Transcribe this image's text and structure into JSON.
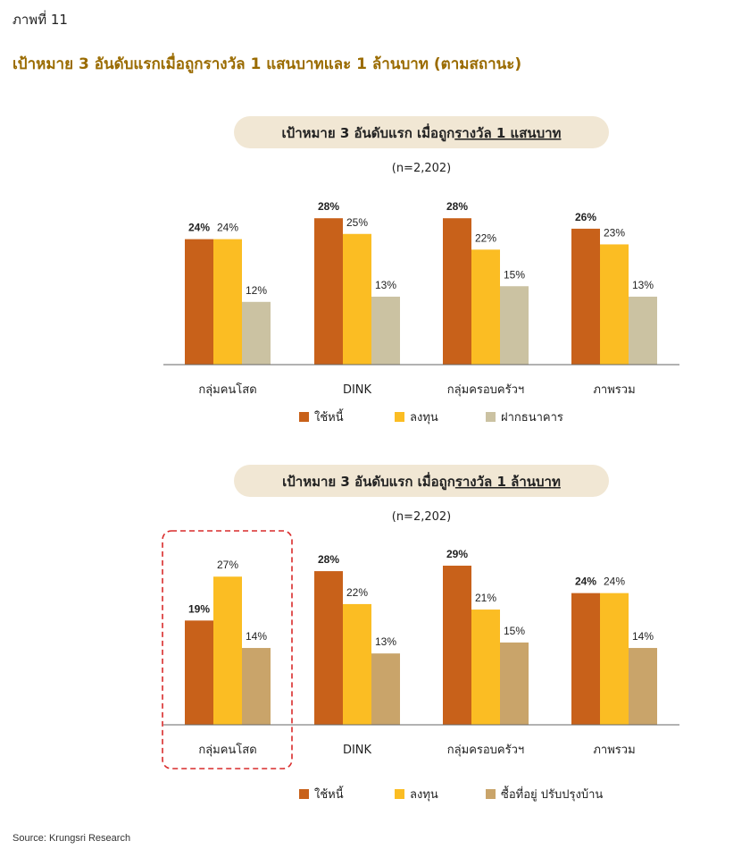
{
  "figure_label": "ภาพที่ 11",
  "figure_title": "เป้าหมาย 3 อันดับแรกเมื่อถูกรางวัล 1 แสนบาทและ 1 ล้านบาท (ตามสถานะ)",
  "source": "Source: Krungsri Research",
  "colors": {
    "s1": "#c8611a",
    "s2": "#fbbd23",
    "s3a": "#cbc2a2",
    "s3b": "#c9a46a",
    "pill": "#f1e7d4",
    "highlight": "#d92b2b"
  },
  "chart_data": [
    {
      "type": "bar",
      "title_prefix": "เป้าหมาย 3 อันดับแรก เมื่อถูก",
      "title_underlined": "รางวัล 1 แสนบาท",
      "subtitle": "(n=2,202)",
      "categories": [
        "กลุ่มคนโสด",
        "DINK",
        "กลุ่มครอบครัวฯ",
        "ภาพรวม"
      ],
      "series": [
        {
          "name": "ใช้หนี้",
          "values": [
            24,
            28,
            28,
            26
          ],
          "labels": [
            "24%",
            "28%",
            "28%",
            "26%"
          ]
        },
        {
          "name": "ลงทุน",
          "values": [
            24,
            25,
            22,
            23
          ],
          "labels": [
            "24%",
            "25%",
            "22%",
            "23%"
          ]
        },
        {
          "name": "ฝากธนาคาร",
          "values": [
            12,
            13,
            15,
            13
          ],
          "labels": [
            "12%",
            "13%",
            "15%",
            "13%"
          ]
        }
      ],
      "grid": false,
      "legend_position": "bottom"
    },
    {
      "type": "bar",
      "title_prefix": "เป้าหมาย 3 อันดับแรก เมื่อถูก",
      "title_underlined": "รางวัล 1 ล้านบาท",
      "subtitle": "(n=2,202)",
      "categories": [
        "กลุ่มคนโสด",
        "DINK",
        "กลุ่มครอบครัวฯ",
        "ภาพรวม"
      ],
      "series": [
        {
          "name": "ใช้หนี้",
          "values": [
            19,
            28,
            29,
            24
          ],
          "labels": [
            "19%",
            "28%",
            "29%",
            "24%"
          ]
        },
        {
          "name": "ลงทุน",
          "values": [
            27,
            22,
            21,
            24
          ],
          "labels": [
            "27%",
            "22%",
            "21%",
            "24%"
          ]
        },
        {
          "name": "ซื้อที่อยู่ ปรับปรุงบ้าน",
          "values": [
            14,
            13,
            15,
            14
          ],
          "labels": [
            "14%",
            "13%",
            "15%",
            "14%"
          ]
        }
      ],
      "grid": false,
      "legend_position": "bottom",
      "highlighted_category": "กลุ่มคนโสด"
    }
  ]
}
